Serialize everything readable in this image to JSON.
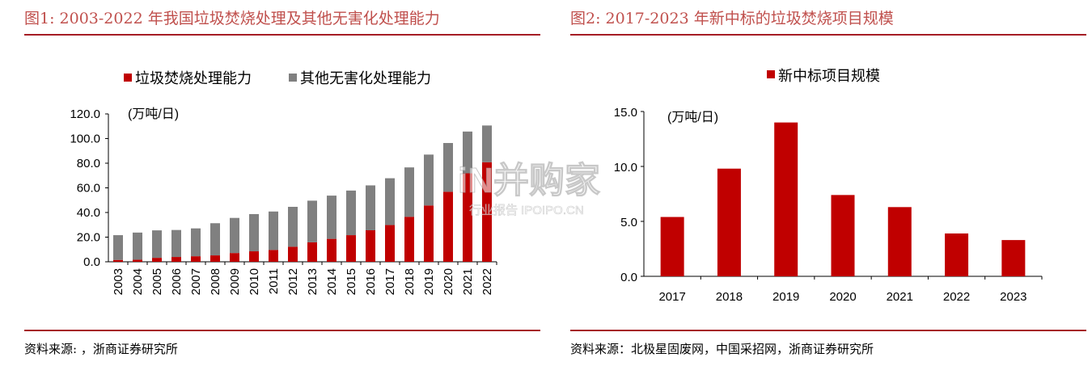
{
  "figure1": {
    "title": "图1:   2003-2022 年我国垃圾焚烧处理及其他无害化处理能力",
    "source": "资料来源:          ，浙商证券研究所"
  },
  "figure2": {
    "title": "图2:   2017-2023 年新中标的垃圾焚烧项目规模",
    "source": "资料来源：北极星固废网，中国采招网，浙商证券研究所"
  },
  "watermark": {
    "main": "iN并购家",
    "sub": "行业报告 IPOIPO.CN"
  },
  "chart_data": [
    {
      "type": "bar",
      "stacked": true,
      "title": "",
      "unit_label": "(万吨/日)",
      "xlabel": "",
      "ylabel": "",
      "categories": [
        "2003",
        "2004",
        "2005",
        "2006",
        "2007",
        "2008",
        "2009",
        "2010",
        "2011",
        "2012",
        "2013",
        "2014",
        "2015",
        "2016",
        "2017",
        "2018",
        "2019",
        "2020",
        "2021",
        "2022"
      ],
      "series": [
        {
          "name": "垃圾焚烧处理能力",
          "color": "#c00000",
          "values": [
            1.5,
            1.7,
            3.2,
            3.9,
            4.5,
            5.2,
            7.1,
            8.5,
            9.6,
            12.2,
            15.8,
            18.6,
            21.6,
            25.6,
            29.8,
            36.5,
            45.7,
            56.8,
            71.8,
            80.8
          ]
        },
        {
          "name": "其他无害化处理能力",
          "color": "#808080",
          "values": [
            20.1,
            22.0,
            22.3,
            21.9,
            22.6,
            26.1,
            28.5,
            30.2,
            31.2,
            32.4,
            33.8,
            35.1,
            36.2,
            36.4,
            38.0,
            40.1,
            41.3,
            39.6,
            33.9,
            29.8
          ]
        }
      ],
      "yticks": [
        "0.0",
        "20.0",
        "40.0",
        "60.0",
        "80.0",
        "100.0",
        "120.0"
      ],
      "ylim": [
        0,
        120
      ],
      "legend_position": "top",
      "grid": false
    },
    {
      "type": "bar",
      "title": "",
      "unit_label": "(万吨/日)",
      "xlabel": "",
      "ylabel": "",
      "categories": [
        "2017",
        "2018",
        "2019",
        "2020",
        "2021",
        "2022",
        "2023"
      ],
      "series": [
        {
          "name": "新中标项目规模",
          "color": "#c00000",
          "values": [
            5.4,
            9.8,
            14.0,
            7.4,
            6.3,
            3.9,
            3.3
          ]
        }
      ],
      "yticks": [
        "0.0",
        "5.0",
        "10.0",
        "15.0"
      ],
      "ylim": [
        0,
        15
      ],
      "legend_position": "top",
      "grid": false
    }
  ]
}
